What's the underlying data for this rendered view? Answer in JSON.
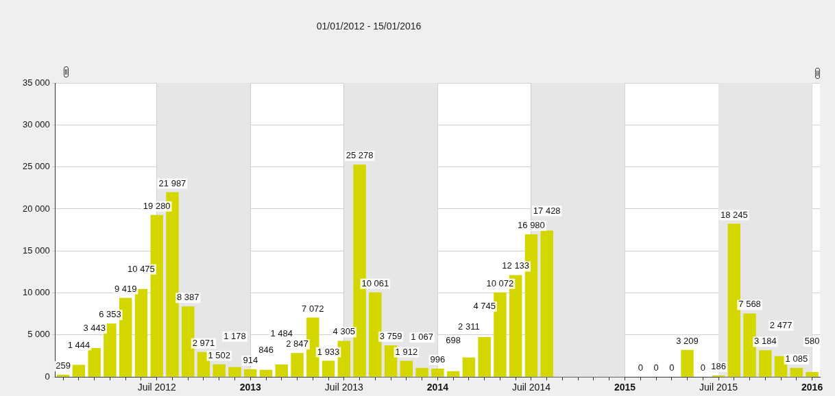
{
  "chart_data": {
    "type": "bar",
    "title": "01/01/2012 - 15/01/2016",
    "categories": [
      null,
      null,
      null,
      null,
      null,
      null,
      "Juil 2012",
      null,
      null,
      null,
      null,
      null,
      "2013",
      null,
      null,
      null,
      null,
      null,
      "Juil 2013",
      null,
      null,
      null,
      null,
      null,
      "2014",
      null,
      null,
      null,
      null,
      null,
      "Juil 2014",
      null,
      null,
      null,
      null,
      null,
      "2015",
      null,
      null,
      null,
      null,
      null,
      "Juil 2015",
      null,
      null,
      null,
      null,
      null,
      "2016"
    ],
    "values": [
      259,
      1444,
      3443,
      6353,
      9419,
      10475,
      19280,
      21987,
      8387,
      2971,
      1502,
      1178,
      914,
      846,
      1484,
      2847,
      7072,
      1933,
      4305,
      25278,
      10061,
      3759,
      1912,
      1067,
      996,
      698,
      2311,
      4745,
      10072,
      12133,
      16980,
      17428,
      null,
      null,
      null,
      null,
      null,
      0,
      0,
      0,
      3209,
      0,
      186,
      18245,
      7568,
      3184,
      2477,
      1085,
      580
    ],
    "value_labels": [
      "259",
      "1 444",
      "3 443",
      "6 353",
      "9 419",
      "10 475",
      "19 280",
      "21 987",
      "8 387",
      "2 971",
      "1 502",
      "1 178",
      "914",
      "846",
      "1 484",
      "2 847",
      "7 072",
      "1 933",
      "4 305",
      "25 278",
      "10 061",
      "3 759",
      "1 912",
      "1 067",
      "996",
      "698",
      "2 311",
      "4 745",
      "10 072",
      "12 133",
      "16 980",
      "17 428",
      null,
      null,
      null,
      null,
      null,
      "0",
      "0",
      "0",
      "3 209",
      "0",
      "186",
      "18 245",
      "7 568",
      "3 184",
      "2 477",
      "1 085",
      "580"
    ],
    "color": "#d4d600",
    "ylim": [
      0,
      35000
    ],
    "yticks": [
      {
        "value": 0,
        "label": "0"
      },
      {
        "value": 5000,
        "label": "5 000"
      },
      {
        "value": 10000,
        "label": "10 000"
      },
      {
        "value": 15000,
        "label": "15 000"
      },
      {
        "value": 20000,
        "label": "20 000"
      },
      {
        "value": 25000,
        "label": "25 000"
      },
      {
        "value": 30000,
        "label": "30 000"
      },
      {
        "value": 35000,
        "label": "35 000"
      }
    ],
    "bands": [
      {
        "axis": "x",
        "from": "Juil 2012",
        "to": "2013",
        "color": "#e6e6e6"
      },
      {
        "axis": "x",
        "from": "Juil 2013",
        "to": "2014",
        "color": "#e6e6e6"
      },
      {
        "axis": "x",
        "from": "Juil 2014",
        "to": "2015",
        "color": "#e6e6e6"
      },
      {
        "axis": "x",
        "from": "Juil 2015",
        "to": "2016",
        "color": "#e6e6e6"
      }
    ],
    "grid": true,
    "legend": false
  }
}
